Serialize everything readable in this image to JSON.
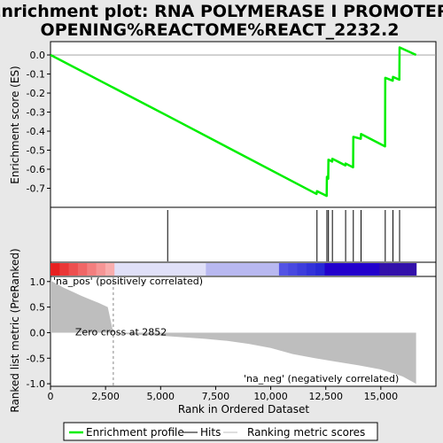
{
  "chart_data": {
    "type": "line",
    "title_line1": "Enrichment plot: RNA POLYMERASE I PROMOTER",
    "title_line2": "OPENING%REACTOME%REACT_2232.2",
    "xlabel": "Rank in Ordered Dataset",
    "ylabel_top": "Enrichment score (ES)",
    "ylabel_bottom": "Ranked list metric (PreRanked)",
    "xlim": [
      0,
      17500
    ],
    "ylim_es": [
      -0.8,
      0.07
    ],
    "ylim_metric": [
      -1.05,
      1.1
    ],
    "x_ticks": [
      0,
      2500,
      5000,
      7500,
      10000,
      12500,
      15000
    ],
    "x_tick_labels": [
      "0",
      "2,500",
      "5,000",
      "7,500",
      "10,000",
      "12,500",
      "15,000"
    ],
    "es_ticks": [
      0.0,
      -0.1,
      -0.2,
      -0.3,
      -0.4,
      -0.5,
      -0.6,
      -0.7
    ],
    "es_tick_labels": [
      "0.0",
      "-0.1",
      "-0.2",
      "-0.3",
      "-0.4",
      "-0.5",
      "-0.6",
      "-0.7"
    ],
    "metric_ticks": [
      1.0,
      0.5,
      0.0,
      -0.5,
      -1.0
    ],
    "metric_tick_labels": [
      "1.0",
      "0.5",
      "0.0",
      "-0.5",
      "-1.0"
    ],
    "total_ranks": 16600,
    "zero_cross": 2852,
    "zero_cross_label": "Zero cross at 2852",
    "pos_label": "'na_pos' (positively correlated)",
    "neg_label": "'na_neg' (negatively correlated)",
    "hits": [
      5320,
      12100,
      12550,
      12620,
      12800,
      13400,
      13750,
      14100,
      15200,
      15550,
      15850
    ],
    "es_curve": {
      "x": [
        0,
        5320,
        12080,
        12100,
        12540,
        12550,
        12610,
        12620,
        12790,
        12800,
        13390,
        13400,
        13740,
        13750,
        14090,
        14100,
        15190,
        15200,
        15540,
        15550,
        15840,
        15850,
        16600
      ],
      "y": [
        0.0,
        -0.32,
        -0.73,
        -0.715,
        -0.74,
        -0.64,
        -0.65,
        -0.55,
        -0.56,
        -0.545,
        -0.58,
        -0.57,
        -0.59,
        -0.43,
        -0.44,
        -0.415,
        -0.48,
        -0.12,
        -0.135,
        -0.115,
        -0.13,
        0.04,
        0.0
      ]
    },
    "metric_curve": {
      "x": [
        0,
        300,
        600,
        1000,
        1400,
        1800,
        2200,
        2600,
        2852,
        3000,
        4000,
        5000,
        6000,
        7000,
        8000,
        9000,
        10000,
        11000,
        12000,
        13000,
        14000,
        15000,
        15600,
        16000,
        16300,
        16600
      ],
      "y": [
        1.02,
        0.95,
        0.88,
        0.8,
        0.72,
        0.65,
        0.58,
        0.5,
        0.0,
        -0.02,
        -0.04,
        -0.06,
        -0.09,
        -0.12,
        -0.16,
        -0.22,
        -0.3,
        -0.42,
        -0.5,
        -0.57,
        -0.64,
        -0.72,
        -0.8,
        -0.86,
        -0.93,
        -1.0
      ]
    },
    "legend": [
      "Enrichment profile",
      "Hits",
      "Ranking metric scores"
    ],
    "colors": {
      "enrichment": "#00ee00",
      "hits": "#000000",
      "metric": "#bebebe",
      "pos_text": "#cc0000",
      "neg_text": "#0000cc"
    }
  }
}
